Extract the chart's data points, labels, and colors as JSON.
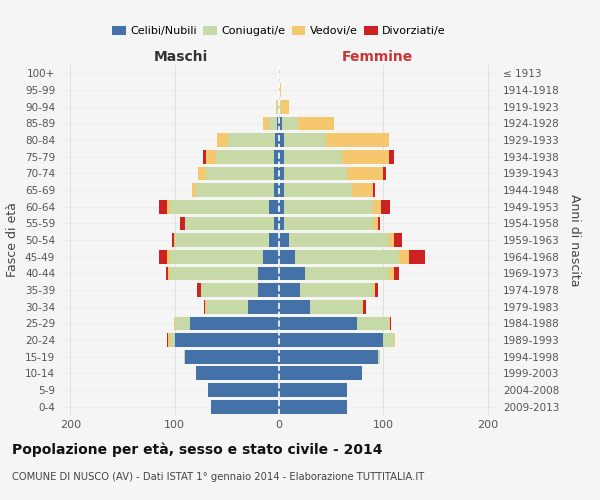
{
  "age_groups": [
    "0-4",
    "5-9",
    "10-14",
    "15-19",
    "20-24",
    "25-29",
    "30-34",
    "35-39",
    "40-44",
    "45-49",
    "50-54",
    "55-59",
    "60-64",
    "65-69",
    "70-74",
    "75-79",
    "80-84",
    "85-89",
    "90-94",
    "95-99",
    "100+"
  ],
  "birth_years": [
    "2009-2013",
    "2004-2008",
    "1999-2003",
    "1994-1998",
    "1989-1993",
    "1984-1988",
    "1979-1983",
    "1974-1978",
    "1969-1973",
    "1964-1968",
    "1959-1963",
    "1954-1958",
    "1949-1953",
    "1944-1948",
    "1939-1943",
    "1934-1938",
    "1929-1933",
    "1924-1928",
    "1919-1923",
    "1914-1918",
    "≤ 1913"
  ],
  "maschi": {
    "celibi": [
      65,
      68,
      80,
      90,
      100,
      85,
      30,
      20,
      20,
      15,
      10,
      5,
      10,
      5,
      5,
      5,
      4,
      2,
      0,
      0,
      0
    ],
    "coniugati": [
      0,
      0,
      0,
      1,
      5,
      15,
      40,
      55,
      85,
      90,
      90,
      85,
      95,
      75,
      65,
      55,
      45,
      8,
      2,
      0,
      0
    ],
    "vedovi": [
      0,
      0,
      0,
      0,
      1,
      1,
      1,
      0,
      1,
      2,
      1,
      0,
      2,
      3,
      8,
      10,
      10,
      5,
      1,
      0,
      0
    ],
    "divorziati": [
      0,
      0,
      0,
      0,
      1,
      0,
      1,
      4,
      2,
      8,
      2,
      5,
      8,
      0,
      0,
      3,
      0,
      0,
      0,
      0,
      0
    ]
  },
  "femmine": {
    "nubili": [
      65,
      65,
      80,
      95,
      100,
      75,
      30,
      20,
      25,
      15,
      10,
      5,
      5,
      5,
      5,
      5,
      5,
      3,
      0,
      0,
      0
    ],
    "coniugate": [
      0,
      0,
      0,
      2,
      10,
      30,
      50,
      70,
      80,
      100,
      95,
      85,
      85,
      65,
      60,
      55,
      40,
      15,
      2,
      0,
      0
    ],
    "vedove": [
      0,
      0,
      0,
      0,
      1,
      1,
      1,
      2,
      5,
      10,
      5,
      5,
      8,
      20,
      35,
      45,
      60,
      35,
      8,
      2,
      1
    ],
    "divorziate": [
      0,
      0,
      0,
      0,
      0,
      1,
      2,
      3,
      5,
      15,
      8,
      2,
      8,
      2,
      3,
      5,
      0,
      0,
      0,
      0,
      0
    ]
  },
  "colors": {
    "celibi": "#4472a8",
    "coniugati": "#c8d9a8",
    "vedovi": "#f5c76e",
    "divorziati": "#cc2222"
  },
  "xlim": 210,
  "title": "Popolazione per età, sesso e stato civile - 2014",
  "subtitle": "COMUNE DI NUSCO (AV) - Dati ISTAT 1° gennaio 2014 - Elaborazione TUTTITALIA.IT",
  "ylabel_left": "Fasce di età",
  "ylabel_right": "Anni di nascita",
  "xlabel_maschi": "Maschi",
  "xlabel_femmine": "Femmine",
  "background_color": "#f5f5f5",
  "grid_color": "#dddddd"
}
